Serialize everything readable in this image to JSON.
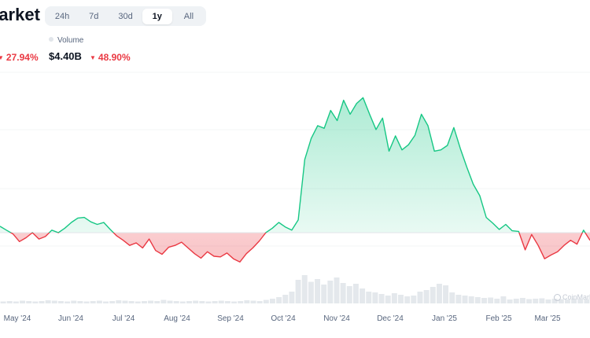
{
  "header": {
    "title": "Market Cap"
  },
  "range_tabs": [
    {
      "label": "24h"
    },
    {
      "label": "7d"
    },
    {
      "label": "30d"
    },
    {
      "label": "1y",
      "active": true
    },
    {
      "label": "All"
    }
  ],
  "market_cap": {
    "change": "27.94%",
    "direction": "down"
  },
  "volume": {
    "label": "Volume",
    "value": "$4.40B",
    "change": "48.90%",
    "direction": "down"
  },
  "watermark": {
    "text": "CoinMarketCap"
  },
  "colors": {
    "up": "#16c784",
    "down": "#ea3943",
    "volume": "#e1e5ea",
    "baseline": "#e2e5ea"
  },
  "chart_data": {
    "type": "area",
    "x_tick_labels": [
      "May '24",
      "Jun '24",
      "Jul '24",
      "Aug '24",
      "Sep '24",
      "Oct '24",
      "Nov '24",
      "Dec '24",
      "Jan '25",
      "Feb '25",
      "Mar '25"
    ],
    "baseline_relative": 0.0,
    "series": [
      {
        "values": [
          0.1,
          0.04,
          -0.02,
          -0.14,
          -0.08,
          0.0,
          -0.1,
          -0.06,
          0.04,
          0.0,
          0.07,
          0.16,
          0.23,
          0.24,
          0.17,
          0.13,
          0.16,
          0.05,
          -0.05,
          -0.12,
          -0.2,
          -0.16,
          -0.24,
          -0.1,
          -0.28,
          -0.34,
          -0.23,
          -0.2,
          -0.15,
          -0.24,
          -0.33,
          -0.4,
          -0.3,
          -0.37,
          -0.38,
          -0.32,
          -0.41,
          -0.46,
          -0.33,
          -0.24,
          -0.13,
          0.0,
          0.07,
          0.16,
          0.09,
          0.04,
          0.2,
          1.15,
          1.48,
          1.68,
          1.64,
          1.92,
          1.76,
          2.08,
          1.86,
          2.03,
          2.12,
          1.86,
          1.62,
          1.8,
          1.28,
          1.52,
          1.3,
          1.38,
          1.53,
          1.86,
          1.68,
          1.28,
          1.3,
          1.37,
          1.65,
          1.32,
          1.03,
          0.76,
          0.58,
          0.24,
          0.15,
          0.05,
          0.13,
          0.03,
          0.02,
          -0.27,
          -0.03,
          -0.2,
          -0.41,
          -0.35,
          -0.3,
          -0.2,
          -0.12,
          -0.18,
          0.04,
          -0.12
        ]
      }
    ],
    "volume_values": [
      0.05,
      0.06,
      0.05,
      0.07,
      0.06,
      0.05,
      0.06,
      0.08,
      0.07,
      0.06,
      0.05,
      0.07,
      0.06,
      0.05,
      0.06,
      0.07,
      0.05,
      0.06,
      0.08,
      0.07,
      0.06,
      0.05,
      0.06,
      0.07,
      0.06,
      0.09,
      0.07,
      0.06,
      0.05,
      0.06,
      0.07,
      0.06,
      0.05,
      0.06,
      0.07,
      0.06,
      0.05,
      0.06,
      0.08,
      0.07,
      0.06,
      0.09,
      0.12,
      0.16,
      0.22,
      0.3,
      0.6,
      0.72,
      0.55,
      0.62,
      0.48,
      0.58,
      0.66,
      0.52,
      0.44,
      0.5,
      0.38,
      0.3,
      0.28,
      0.24,
      0.2,
      0.26,
      0.22,
      0.18,
      0.2,
      0.3,
      0.34,
      0.42,
      0.5,
      0.46,
      0.28,
      0.22,
      0.2,
      0.18,
      0.16,
      0.14,
      0.15,
      0.12,
      0.18,
      0.1,
      0.12,
      0.14,
      0.11,
      0.12,
      0.13,
      0.1,
      0.12,
      0.11,
      0.1,
      0.12,
      0.11,
      0.1
    ]
  }
}
